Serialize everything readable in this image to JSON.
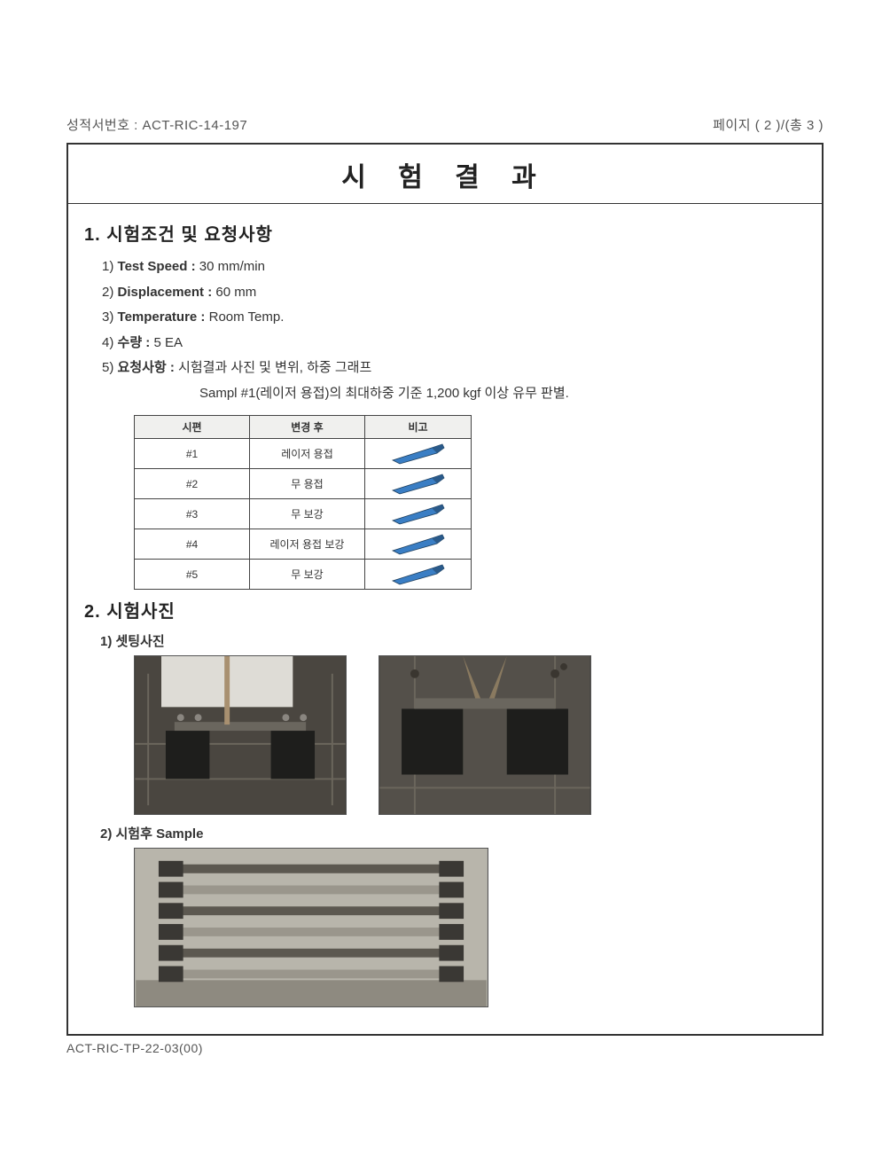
{
  "header": {
    "report_no_label": "성적서번호 : ",
    "report_no_value": "ACT-RIC-14-197",
    "page_label": "페이지 ( 2 )/(총 3 )"
  },
  "title": "시 험 결 과",
  "section1": {
    "heading": "1. 시험조건 및 요청사항",
    "items": [
      {
        "n": "1)",
        "label": "Test Speed : ",
        "value": "30 mm/min"
      },
      {
        "n": "2)",
        "label": "Displacement : ",
        "value": "60 mm"
      },
      {
        "n": "3)",
        "label": "Temperature : ",
        "value": "Room Temp."
      },
      {
        "n": "4)",
        "label": "수량 : ",
        "value": "5 EA"
      },
      {
        "n": "5)",
        "label": "요청사항 : ",
        "value": "시험결과 사진 및 변위, 하중 그래프"
      }
    ],
    "note": "Sampl #1(레이저 용접)의 최대하중 기준 1,200 kgf 이상 유무 판별."
  },
  "sample_table": {
    "columns": [
      "시편",
      "변경 후",
      "비고"
    ],
    "rows": [
      {
        "id": "#1",
        "change": "레이저 용접"
      },
      {
        "id": "#2",
        "change": "무 용접"
      },
      {
        "id": "#3",
        "change": "무 보강"
      },
      {
        "id": "#4",
        "change": "레이저 용접 보강"
      },
      {
        "id": "#5",
        "change": "무 보강"
      }
    ],
    "remark_icon_colors": {
      "body": "#3a7ec4",
      "tip": "#2a5a8a",
      "outline": "#1d3d5a"
    }
  },
  "section2": {
    "heading": "2. 시험사진",
    "sub1": "1) 셋팅사진",
    "sub2": "2) 시험후 Sample"
  },
  "photos": {
    "setup_bg": "#4a4640",
    "setup_fixture": "#1e1e1c",
    "setup_plate": "#d8d6d0",
    "setup_bar": "#6a665e",
    "setup_grid": "#6b665c",
    "after_bg": "#b8b5ab",
    "after_bar_light": "#9a968c",
    "after_bar_dark": "#5c5850",
    "after_bracket": "#3a3834"
  },
  "footer_code": "ACT-RIC-TP-22-03(00)"
}
